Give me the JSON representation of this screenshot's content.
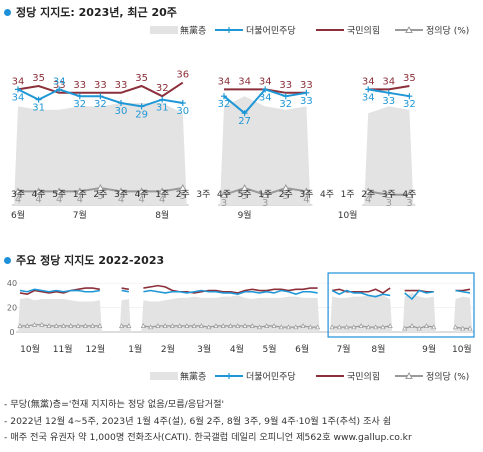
{
  "colors": {
    "minjoo": "#1f97d6",
    "ppp": "#8b2f3a",
    "justice": "#9a9a9a",
    "indep": "#e3e3e3",
    "accent": "#1e90d8"
  },
  "top_title": "정당 지지도: 2023년, 최근 20주",
  "bottom_title": "주요 정당 지지도 2022-2023",
  "legend": {
    "indep": "無黨층",
    "minjoo": "더불어민주당",
    "ppp": "국민의힘",
    "justice": "정의당 (%)"
  },
  "legend2": {
    "indep": "無黨층",
    "minjoo": "더불어민주당",
    "ppp": "국민의힘",
    "justice": "정의당 (%)"
  },
  "notes": [
    "- 무당(無黨)층='현재 지지하는 정당 없음/모름/응답거절'",
    "- 2022년 12월 4~5주, 2023년 1월 4주(설), 6월 2주, 8월 3주, 9월 4주·10월 1주(추석) 조사 쉼",
    "- 매주 전국 유권자 약 1,000명 전화조사(CATI). 한국갤럽 데일리 오피니언 제562호 www.gallup.co.kr"
  ],
  "chart_data": [
    {
      "type": "line",
      "title": "정당 지지도: 2023년, 최근 20주",
      "week_labels": [
        "3주",
        "4주",
        "5주",
        "1주",
        "2주",
        "3주",
        "4주",
        "1주",
        "2주",
        "3주",
        "4주",
        "5주",
        "1주",
        "2주",
        "3주",
        "4주",
        "1주",
        "2주",
        "3주",
        "4주"
      ],
      "month_labels": [
        {
          "label": "6월",
          "week_index": 0
        },
        {
          "label": "7월",
          "week_index": 3
        },
        {
          "label": "8월",
          "week_index": 7
        },
        {
          "label": "9월",
          "week_index": 11
        },
        {
          "label": "10월",
          "week_index": 16
        }
      ],
      "series": [
        {
          "name": "더불어민주당",
          "values": [
            34,
            31,
            34,
            32,
            32,
            30,
            29,
            31,
            30,
            null,
            32,
            27,
            34,
            32,
            33,
            null,
            null,
            34,
            33,
            32
          ]
        },
        {
          "name": "국민의힘",
          "values": [
            34,
            35,
            33,
            33,
            33,
            33,
            35,
            32,
            36,
            null,
            34,
            34,
            34,
            33,
            33,
            null,
            null,
            34,
            34,
            35
          ]
        },
        {
          "name": "정의당",
          "values": [
            4,
            4,
            4,
            4,
            5,
            4,
            4,
            4,
            5,
            null,
            3,
            5,
            3,
            5,
            4,
            null,
            null,
            4,
            3,
            3
          ]
        },
        {
          "name": "無黨층",
          "values": [
            29,
            28,
            28,
            29,
            29,
            30,
            30,
            30,
            27,
            null,
            29,
            32,
            29,
            28,
            29,
            null,
            null,
            27,
            29,
            28
          ]
        }
      ],
      "ylim": [
        0,
        40
      ]
    },
    {
      "type": "line",
      "title": "주요 정당 지지도 2022-2023",
      "month_labels": [
        "10월",
        "11월",
        "12월",
        "1월",
        "2월",
        "3월",
        "4월",
        "5월",
        "6월",
        "7월",
        "8월",
        "9월",
        "10월"
      ],
      "series": [
        {
          "name": "더불어민주당",
          "values": [
            34,
            33,
            35,
            34,
            33,
            34,
            33,
            34,
            34,
            33,
            33,
            34,
            null,
            null,
            34,
            33,
            null,
            33,
            34,
            33,
            32,
            33,
            33,
            32,
            33,
            34,
            33,
            33,
            32,
            32,
            31,
            33,
            33,
            32,
            33,
            32,
            34,
            33,
            31,
            33,
            33,
            32,
            null,
            34,
            31,
            34,
            32,
            32,
            30,
            29,
            31,
            30,
            null,
            32,
            27,
            34,
            32,
            33,
            null,
            null,
            34,
            33,
            32
          ]
        },
        {
          "name": "국민의힘",
          "values": [
            32,
            31,
            34,
            33,
            32,
            33,
            32,
            34,
            35,
            36,
            36,
            35,
            null,
            null,
            36,
            35,
            null,
            36,
            37,
            38,
            37,
            34,
            33,
            33,
            32,
            33,
            34,
            34,
            33,
            33,
            32,
            34,
            35,
            34,
            34,
            35,
            35,
            34,
            35,
            35,
            36,
            36,
            null,
            34,
            35,
            33,
            33,
            33,
            33,
            35,
            32,
            36,
            null,
            34,
            34,
            34,
            33,
            33,
            null,
            null,
            34,
            34,
            35
          ]
        },
        {
          "name": "정의당",
          "values": [
            5,
            5,
            6,
            6,
            5,
            5,
            5,
            5,
            5,
            5,
            5,
            5,
            null,
            null,
            5,
            5,
            null,
            5,
            4,
            5,
            5,
            5,
            5,
            5,
            5,
            5,
            4,
            5,
            5,
            5,
            5,
            5,
            5,
            4,
            5,
            5,
            4,
            4,
            4,
            5,
            4,
            4,
            null,
            4,
            4,
            4,
            4,
            5,
            4,
            4,
            4,
            5,
            null,
            3,
            5,
            3,
            5,
            4,
            null,
            null,
            4,
            3,
            3
          ]
        },
        {
          "name": "無黨층",
          "values": [
            27,
            28,
            26,
            27,
            27,
            27,
            27,
            26,
            25,
            25,
            25,
            26,
            null,
            null,
            26,
            27,
            null,
            26,
            25,
            25,
            26,
            27,
            28,
            28,
            29,
            28,
            28,
            28,
            29,
            29,
            30,
            28,
            27,
            28,
            28,
            28,
            28,
            29,
            29,
            28,
            28,
            28,
            null,
            29,
            28,
            28,
            29,
            29,
            30,
            30,
            30,
            27,
            null,
            29,
            32,
            29,
            28,
            29,
            null,
            null,
            27,
            29,
            28
          ]
        }
      ],
      "ylim": [
        0,
        40
      ],
      "yticks": [
        0,
        20,
        40
      ]
    }
  ]
}
